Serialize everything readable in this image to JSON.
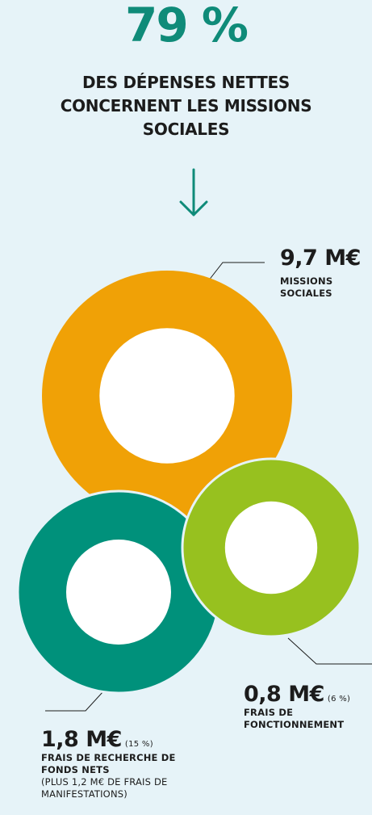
{
  "header": {
    "percent": "79 %",
    "text": "DES DÉPENSES NETTES CONCERNENT LES MISSIONS SOCIALES"
  },
  "colors": {
    "background": "#e6f3f8",
    "accent": "#0f8b79",
    "missions": "#f0a106",
    "recherche": "#00917b",
    "fonctionnement": "#97c11f",
    "text": "#1c1c1c"
  },
  "chart_data": {
    "type": "donut",
    "unit": "M€",
    "series": [
      {
        "label": "MISSIONS SOCIALES",
        "value": 9.7,
        "value_text": "9,7 M€",
        "percent_text": "",
        "note": "",
        "color": "#f0a106"
      },
      {
        "label": "FRAIS DE RECHERCHE DE FONDS NETS",
        "value": 1.8,
        "value_text": "1,8 M€",
        "percent": 15,
        "percent_text": "(15 %)",
        "note": "(PLUS 1,2 M€ DE FRAIS DE MANIFESTATIONS)",
        "color": "#00917b"
      },
      {
        "label": "FRAIS DE FONCTIONNEMENT",
        "value": 0.8,
        "value_text": "0,8 M€",
        "percent": 6,
        "percent_text": "(6 %)",
        "note": "",
        "color": "#97c11f"
      }
    ]
  }
}
